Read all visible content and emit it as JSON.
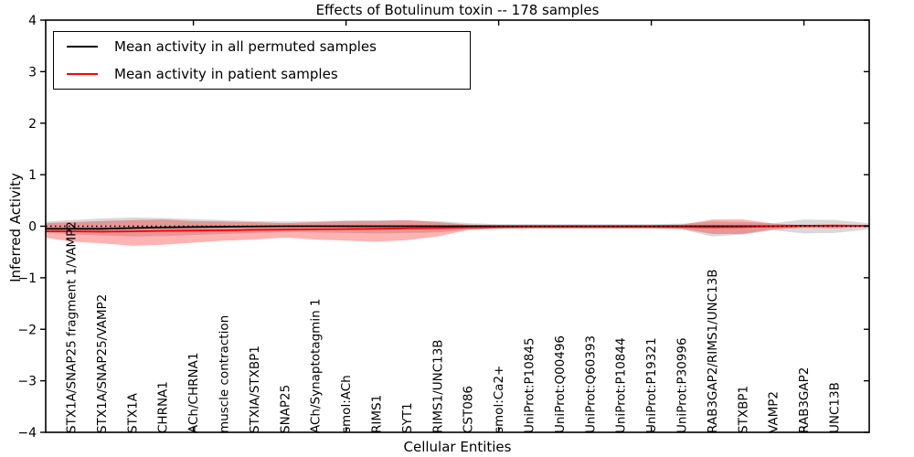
{
  "figure": {
    "background": "#ffffff"
  },
  "chart_data": {
    "type": "line",
    "title": "Effects of Botulinum toxin -- 178 samples",
    "xlabel": "Cellular Entities",
    "ylabel": "Inferred Activity",
    "ylim": [
      -4,
      4
    ],
    "yticks": [
      -4,
      -3,
      -2,
      -1,
      0,
      1,
      2,
      3,
      4
    ],
    "major_top_tick_indices": [
      4,
      9,
      14,
      19,
      24
    ],
    "grid": false,
    "zero_line": {
      "y": 0,
      "style": "dotted",
      "color": "#000000"
    },
    "legend": {
      "position": "upper left"
    },
    "categories": [
      "STX1A/SNAP25 fragment 1/VAMP2",
      "STX1A/SNAP25/VAMP2",
      "STX1A",
      "CHRNA1",
      "ACh/CHRNA1",
      "muscle contraction",
      "STXIA/STXBP1",
      "SNAP25",
      "ACh/Synaptotagmin 1",
      "smol:ACh",
      "RIMS1",
      "SYT1",
      "RIMS1/UNC13B",
      "CST086",
      "smol:Ca2+",
      "UniProt:P10845",
      "UniProt:Q00496",
      "UniProt:Q60393",
      "UniProt:P10844",
      "UniProt:P19321",
      "UniProt:P30996",
      "RAB3GAP2/RIMS1/UNC13B",
      "STXBP1",
      "VAMP2",
      "RAB3GAP2",
      "UNC13B"
    ],
    "series": [
      {
        "name": "Mean activity in all permuted samples",
        "color": "#000000",
        "values": [
          -0.05,
          -0.05,
          -0.035,
          -0.025,
          -0.015,
          -0.01,
          -0.005,
          0,
          0,
          0,
          0,
          0,
          0,
          0,
          0,
          0,
          0,
          0,
          0,
          0,
          0,
          0,
          0,
          0,
          0.01,
          0.01
        ]
      },
      {
        "name": "Mean activity in patient samples",
        "color": "#ff0000",
        "values": [
          -0.1,
          -0.105,
          -0.1,
          -0.09,
          -0.085,
          -0.08,
          -0.07,
          -0.065,
          -0.06,
          -0.055,
          -0.05,
          -0.04,
          -0.035,
          -0.025,
          -0.02,
          -0.015,
          -0.015,
          -0.015,
          -0.015,
          -0.015,
          -0.015,
          -0.02,
          -0.015,
          -0.005,
          0.005,
          0.01
        ]
      }
    ],
    "bands": [
      {
        "name": "permuted-samples-band",
        "color": "rgba(0,0,0,0.15)",
        "upper": [
          0.12,
          0.15,
          0.17,
          0.16,
          0.14,
          0.12,
          0.1,
          0.09,
          0.1,
          0.11,
          0.12,
          0.11,
          0.1,
          0.06,
          0.04,
          0.04,
          0.04,
          0.04,
          0.04,
          0.04,
          0.05,
          0.09,
          0.08,
          0.06,
          0.13,
          0.12
        ],
        "lower": [
          -0.16,
          -0.18,
          -0.2,
          -0.19,
          -0.17,
          -0.15,
          -0.13,
          -0.11,
          -0.12,
          -0.13,
          -0.14,
          -0.13,
          -0.12,
          -0.07,
          -0.05,
          -0.05,
          -0.05,
          -0.05,
          -0.05,
          -0.05,
          -0.06,
          -0.2,
          -0.16,
          -0.08,
          -0.14,
          -0.13
        ]
      },
      {
        "name": "patient-samples-band",
        "color": "rgba(255,0,0,0.30)",
        "upper": [
          0.08,
          0.1,
          0.12,
          0.13,
          0.1,
          0.09,
          0.08,
          0.06,
          0.08,
          0.1,
          0.1,
          0.12,
          0.08,
          0.03,
          0.02,
          0.02,
          0.02,
          0.02,
          0.02,
          0.02,
          0.03,
          0.13,
          0.13,
          0.05,
          0.02,
          0.04
        ],
        "lower": [
          -0.3,
          -0.33,
          -0.38,
          -0.36,
          -0.32,
          -0.28,
          -0.26,
          -0.22,
          -0.26,
          -0.28,
          -0.3,
          -0.27,
          -0.2,
          -0.07,
          -0.04,
          -0.035,
          -0.035,
          -0.035,
          -0.035,
          -0.035,
          -0.05,
          -0.15,
          -0.15,
          -0.06,
          -0.03,
          -0.04
        ]
      }
    ]
  }
}
